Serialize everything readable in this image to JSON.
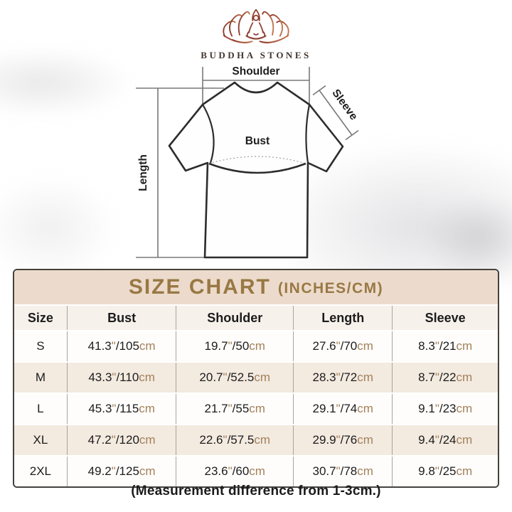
{
  "brand": {
    "name": "BUDDHA STONES",
    "logo_icon": "lotus-meditation-icon",
    "logo_color_dark": "#8e3c2c",
    "logo_color_light": "#c1764f"
  },
  "diagram": {
    "labels": {
      "shoulder": "Shoulder",
      "sleeve": "Sleeve",
      "bust": "Bust",
      "length": "Length"
    }
  },
  "size_chart": {
    "title": "SIZE CHART",
    "title_suffix": "(INCHES/CM)",
    "units": {
      "inch_mark": "\"",
      "cm_mark": "cm",
      "separator": "/"
    },
    "columns": [
      "Size",
      "Bust",
      "Shoulder",
      "Length",
      "Sleeve"
    ],
    "rows": [
      {
        "size": "S",
        "cells": [
          {
            "in": "41.3",
            "cm": "105"
          },
          {
            "in": "19.7",
            "cm": "50"
          },
          {
            "in": "27.6",
            "cm": "70"
          },
          {
            "in": "8.3",
            "cm": "21"
          }
        ]
      },
      {
        "size": "M",
        "cells": [
          {
            "in": "43.3",
            "cm": "110"
          },
          {
            "in": "20.7",
            "cm": "52.5"
          },
          {
            "in": "28.3",
            "cm": "72"
          },
          {
            "in": "8.7",
            "cm": "22"
          }
        ]
      },
      {
        "size": "L",
        "cells": [
          {
            "in": "45.3",
            "cm": "115"
          },
          {
            "in": "21.7",
            "cm": "55"
          },
          {
            "in": "29.1",
            "cm": "74"
          },
          {
            "in": "9.1",
            "cm": "23"
          }
        ]
      },
      {
        "size": "XL",
        "cells": [
          {
            "in": "47.2",
            "cm": "120"
          },
          {
            "in": "22.6",
            "cm": "57.5"
          },
          {
            "in": "29.9",
            "cm": "76"
          },
          {
            "in": "9.4",
            "cm": "24"
          }
        ]
      },
      {
        "size": "2XL",
        "cells": [
          {
            "in": "49.2",
            "cm": "125"
          },
          {
            "in": "23.6",
            "cm": "60"
          },
          {
            "in": "30.7",
            "cm": "78"
          },
          {
            "in": "9.8",
            "cm": "25"
          }
        ]
      }
    ],
    "colors": {
      "title_band_bg": "#ecdbcc",
      "title_text": "#997844",
      "header_row_bg": "#f7f1eb",
      "alt_row_bg": "#f3eae0",
      "unit_text": "#a3815a",
      "border": "#45413d"
    }
  },
  "footnote": "(Measurement difference from 1-3cm.)"
}
